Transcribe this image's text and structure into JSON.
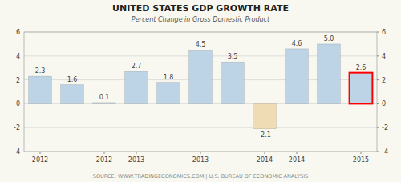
{
  "chart_data": {
    "type": "bar",
    "title": "UNITED STATES GDP GROWTH RATE",
    "subtitle": "Percent Change in Gross Domestic Product",
    "annotations": [
      "SOURCE: WWW.TRADINGECONOMICS.COM | U.S. BUREAU OF ECONOMIC ANALYSIS"
    ],
    "categories": [
      "2012",
      null,
      "2012",
      "2013",
      null,
      "2013",
      null,
      "2014",
      "2014",
      null,
      "2015"
    ],
    "values": [
      2.3,
      1.6,
      0.1,
      2.7,
      1.8,
      4.5,
      3.5,
      -2.1,
      4.6,
      5.0,
      2.6
    ],
    "value_labels": [
      "2.3",
      "1.6",
      "0.1",
      "2.7",
      "1.8",
      "4.5",
      "3.5",
      "-2.1",
      "4.6",
      "5.0",
      "2.6"
    ],
    "colors": [
      "#bdd3e6",
      "#bdd3e6",
      "#bdd3e6",
      "#bdd3e6",
      "#bdd3e6",
      "#bdd3e6",
      "#bdd3e6",
      "#f0dcb4",
      "#bdd3e6",
      "#bdd3e6",
      "#bdd3e6"
    ],
    "ylim": [
      -4,
      6
    ],
    "yticks": [
      -4,
      -2,
      0,
      2,
      4,
      6
    ],
    "y2lim": [
      -4,
      6
    ],
    "y2ticks": [
      -4,
      -2,
      0,
      2,
      4,
      6
    ],
    "grid": true,
    "data_labels": true
  }
}
